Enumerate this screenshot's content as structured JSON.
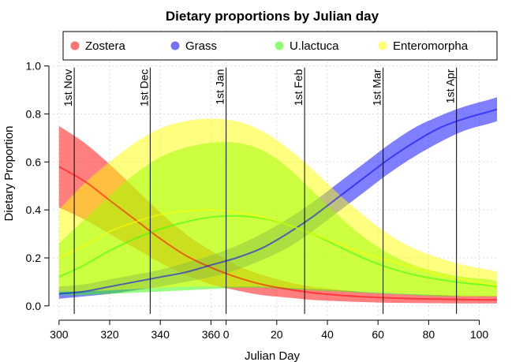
{
  "chart_data": {
    "type": "area",
    "title": "Dietary proportions by Julian day",
    "xlabel": "Julian Day",
    "ylabel": "Dietary Proportion",
    "xlim": [
      296,
      473
    ],
    "ylim": [
      -0.04,
      1.15
    ],
    "x_ticks": [
      300,
      320,
      340,
      360,
      380,
      400,
      420,
      440,
      460
    ],
    "x_tick_labels": [
      "300",
      "320",
      "340",
      "360",
      "0",
      "20",
      "40",
      "60",
      "80",
      "100"
    ],
    "x_tick_positions": [
      300,
      320,
      340,
      360,
      366,
      386,
      406,
      426,
      446,
      466
    ],
    "y_ticks": [
      0.0,
      0.2,
      0.4,
      0.6,
      0.8,
      1.0
    ],
    "y_tick_labels": [
      "0.0",
      "0.2",
      "0.4",
      "0.6",
      "0.8",
      "1.0"
    ],
    "grid": true,
    "legend_position": "top",
    "x": [
      300,
      310,
      320,
      330,
      340,
      350,
      360,
      370,
      380,
      390,
      400,
      410,
      420,
      430,
      440,
      450,
      460,
      470,
      473
    ],
    "series": [
      {
        "name": "Zostera",
        "color": "#ff0000",
        "mean": [
          0.58,
          0.52,
          0.44,
          0.36,
          0.28,
          0.21,
          0.16,
          0.12,
          0.09,
          0.07,
          0.055,
          0.045,
          0.038,
          0.033,
          0.03,
          0.028,
          0.026,
          0.025,
          0.025
        ],
        "lower": [
          0.41,
          0.36,
          0.3,
          0.24,
          0.18,
          0.13,
          0.09,
          0.065,
          0.045,
          0.035,
          0.025,
          0.02,
          0.016,
          0.013,
          0.012,
          0.011,
          0.01,
          0.01,
          0.01
        ],
        "upper": [
          0.75,
          0.68,
          0.59,
          0.49,
          0.39,
          0.3,
          0.23,
          0.17,
          0.13,
          0.1,
          0.08,
          0.068,
          0.058,
          0.052,
          0.048,
          0.045,
          0.043,
          0.042,
          0.042
        ]
      },
      {
        "name": "Grass",
        "color": "#0000ff",
        "mean": [
          0.05,
          0.06,
          0.08,
          0.1,
          0.12,
          0.14,
          0.17,
          0.2,
          0.24,
          0.3,
          0.37,
          0.45,
          0.53,
          0.61,
          0.68,
          0.74,
          0.78,
          0.81,
          0.82
        ],
        "lower": [
          0.03,
          0.04,
          0.05,
          0.065,
          0.08,
          0.1,
          0.12,
          0.15,
          0.19,
          0.24,
          0.31,
          0.39,
          0.47,
          0.55,
          0.62,
          0.68,
          0.73,
          0.76,
          0.77
        ],
        "upper": [
          0.08,
          0.09,
          0.11,
          0.13,
          0.15,
          0.18,
          0.21,
          0.25,
          0.3,
          0.36,
          0.43,
          0.51,
          0.59,
          0.67,
          0.74,
          0.79,
          0.83,
          0.86,
          0.87
        ]
      },
      {
        "name": "U.lactuca",
        "color": "#33ff00",
        "mean": [
          0.12,
          0.17,
          0.23,
          0.28,
          0.32,
          0.35,
          0.37,
          0.375,
          0.365,
          0.34,
          0.3,
          0.25,
          0.2,
          0.16,
          0.13,
          0.11,
          0.095,
          0.085,
          0.08
        ],
        "lower": [
          0.045,
          0.045,
          0.05,
          0.055,
          0.06,
          0.065,
          0.07,
          0.075,
          0.075,
          0.07,
          0.065,
          0.06,
          0.055,
          0.05,
          0.045,
          0.04,
          0.04,
          0.04,
          0.04
        ],
        "upper": [
          0.26,
          0.36,
          0.46,
          0.55,
          0.62,
          0.66,
          0.68,
          0.68,
          0.65,
          0.58,
          0.48,
          0.38,
          0.29,
          0.22,
          0.17,
          0.14,
          0.12,
          0.11,
          0.1
        ]
      },
      {
        "name": "Enteromorpha",
        "color": "#ffff00",
        "mean": [
          0.2,
          0.25,
          0.31,
          0.35,
          0.38,
          0.395,
          0.4,
          0.39,
          0.37,
          0.34,
          0.3,
          0.26,
          0.22,
          0.19,
          0.16,
          0.13,
          0.11,
          0.09,
          0.085
        ],
        "lower": [
          0.06,
          0.06,
          0.065,
          0.07,
          0.075,
          0.08,
          0.08,
          0.08,
          0.08,
          0.075,
          0.07,
          0.065,
          0.06,
          0.055,
          0.05,
          0.045,
          0.04,
          0.04,
          0.04
        ],
        "upper": [
          0.4,
          0.51,
          0.6,
          0.68,
          0.74,
          0.77,
          0.78,
          0.77,
          0.73,
          0.66,
          0.57,
          0.47,
          0.38,
          0.3,
          0.24,
          0.2,
          0.17,
          0.15,
          0.14
        ]
      }
    ],
    "vlines": [
      {
        "x": 306,
        "label": "1st Nov"
      },
      {
        "x": 336,
        "label": "1st Dec"
      },
      {
        "x": 366,
        "label": "1st Jan"
      },
      {
        "x": 397,
        "label": "1st Feb"
      },
      {
        "x": 428,
        "label": "1st Mar"
      },
      {
        "x": 457,
        "label": "1st Apr"
      }
    ]
  }
}
